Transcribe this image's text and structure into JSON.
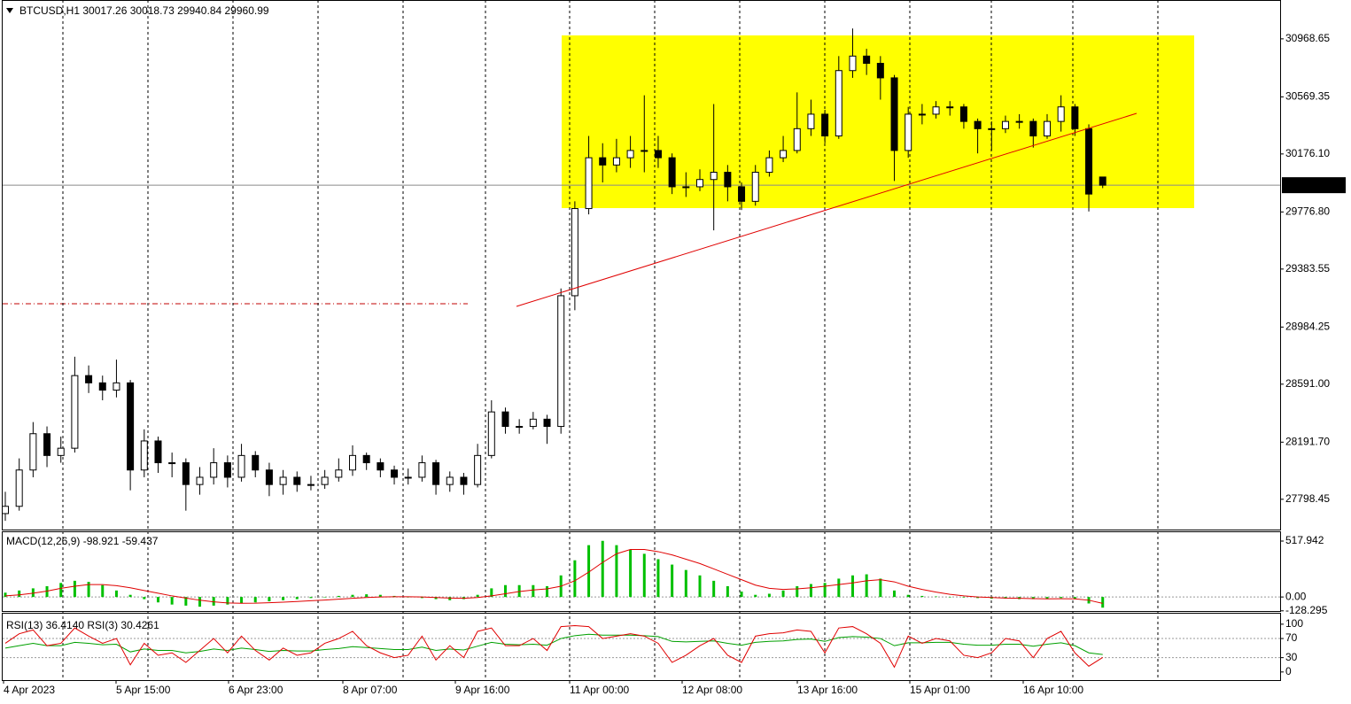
{
  "chart_data": [
    {
      "type": "candlestick",
      "title": "BTCUSD,H1  30017.26 30018.73 29940.84 29960.99",
      "open": [
        27700,
        27750,
        28000,
        28250,
        28100,
        28150,
        28650,
        28600,
        28550,
        28600,
        28000,
        28200,
        28050,
        28050,
        27900,
        27950,
        28050,
        27950,
        28100,
        28000,
        27900,
        27950,
        27900,
        27900,
        27950,
        28000,
        28100,
        28050,
        28000,
        27950,
        27950,
        28050,
        27900,
        27950,
        27900,
        28100,
        28400,
        28300,
        28300,
        28350,
        28300,
        29200,
        29800,
        30150,
        30100,
        30150,
        30200,
        30200,
        30150,
        29950,
        29950,
        30000,
        30050,
        29950,
        29850,
        30050,
        30150,
        30200,
        30350,
        30450,
        30300,
        30750,
        30850,
        30800,
        30700,
        30200,
        30450,
        30450,
        30500,
        30500,
        30400,
        30350,
        30350,
        30400,
        30400,
        30300,
        30400,
        30500,
        30350,
        30017.26
      ],
      "high": [
        27850,
        28080,
        28330,
        28300,
        28230,
        28780,
        28720,
        28650,
        28760,
        28620,
        28280,
        28230,
        28120,
        28080,
        28020,
        28150,
        28100,
        28180,
        28130,
        28050,
        28000,
        27990,
        27960,
        28000,
        28080,
        28170,
        28120,
        28080,
        28030,
        28010,
        28100,
        28070,
        27990,
        27980,
        28180,
        28480,
        28430,
        28350,
        28400,
        28380,
        29250,
        29850,
        30300,
        30250,
        30280,
        30300,
        30580,
        30300,
        30180,
        30050,
        30070,
        30520,
        30100,
        29980,
        30100,
        30200,
        30300,
        30600,
        30550,
        30480,
        30850,
        31040,
        30900,
        30850,
        30720,
        30500,
        30520,
        30540,
        30540,
        30520,
        30420,
        30400,
        30440,
        30450,
        30420,
        30450,
        30580,
        30520,
        30380,
        30018.73
      ],
      "low": [
        27650,
        27720,
        27950,
        28020,
        28050,
        28120,
        28530,
        28480,
        28500,
        27860,
        27950,
        27980,
        27950,
        27720,
        27830,
        27900,
        27880,
        27920,
        27950,
        27820,
        27830,
        27850,
        27860,
        27870,
        27920,
        27960,
        28000,
        27950,
        27900,
        27900,
        27920,
        27830,
        27850,
        27830,
        27880,
        28080,
        28250,
        28250,
        28280,
        28180,
        28250,
        29100,
        29760,
        29980,
        30050,
        30080,
        30050,
        30080,
        29900,
        29880,
        29920,
        29650,
        29850,
        29790,
        29820,
        30020,
        30120,
        30180,
        30300,
        30250,
        30280,
        30700,
        30720,
        30550,
        29990,
        30150,
        30380,
        30420,
        30440,
        30350,
        30180,
        30200,
        30320,
        30350,
        30220,
        30280,
        30330,
        30300,
        29780,
        29940.84
      ],
      "close": [
        27750,
        28000,
        28250,
        28100,
        28150,
        28650,
        28600,
        28550,
        28600,
        28000,
        28200,
        28050,
        28050,
        27900,
        27950,
        28050,
        27950,
        28100,
        28000,
        27900,
        27950,
        27900,
        27900,
        27950,
        28000,
        28100,
        28050,
        28000,
        27950,
        27950,
        28050,
        27900,
        27950,
        27900,
        28100,
        28400,
        28300,
        28300,
        28350,
        28300,
        29200,
        29800,
        30150,
        30100,
        30150,
        30200,
        30200,
        30150,
        29950,
        29950,
        30000,
        30050,
        29950,
        29850,
        30050,
        30150,
        30200,
        30350,
        30450,
        30300,
        30750,
        30850,
        30800,
        30700,
        30200,
        30450,
        30450,
        30500,
        30500,
        30400,
        30350,
        30350,
        30400,
        30400,
        30300,
        30400,
        30500,
        30350,
        29900,
        29960.99
      ],
      "ylim": [
        27590,
        31230
      ],
      "yticks": [
        30968.65,
        30569.35,
        {
          "value": 30176.1,
          "label": "30176.10"
        },
        {
          "value": 29776.8,
          "label": "29776.80"
        },
        29383.55,
        28984.25,
        {
          "value": 28591,
          "label": "28591.00"
        },
        {
          "value": 28191.7,
          "label": "28191.70"
        },
        27798.45
      ],
      "current_price": 29960.99,
      "x_labels": [
        "4 Apr 2023",
        "5 Apr 15:00",
        "6 Apr 23:00",
        "8 Apr 07:00",
        "9 Apr 16:00",
        "11 Apr 00:00",
        "12 Apr 08:00",
        "13 Apr 16:00",
        "15 Apr 01:00",
        "16 Apr 10:00"
      ]
    },
    {
      "type": "macd",
      "title": "MACD(12,26,9) -98.921 -59.437",
      "histogram": [
        40,
        60,
        80,
        100,
        130,
        150,
        140,
        110,
        60,
        20,
        -20,
        -50,
        -70,
        -80,
        -90,
        -80,
        -70,
        -60,
        -50,
        -40,
        -30,
        -20,
        -10,
        0,
        10,
        20,
        25,
        20,
        10,
        0,
        -10,
        -20,
        -30,
        -20,
        20,
        80,
        110,
        110,
        110,
        100,
        200,
        340,
        480,
        520,
        480,
        440,
        400,
        350,
        300,
        250,
        200,
        150,
        100,
        50,
        20,
        30,
        60,
        100,
        120,
        130,
        170,
        200,
        210,
        170,
        60,
        20,
        10,
        5,
        0,
        -5,
        -10,
        -15,
        -15,
        -20,
        -20,
        -20,
        -10,
        -20,
        -60,
        -98.921
      ],
      "signal": [
        10,
        20,
        35,
        55,
        80,
        100,
        115,
        115,
        105,
        85,
        60,
        35,
        10,
        -10,
        -30,
        -45,
        -55,
        -58,
        -57,
        -53,
        -48,
        -42,
        -35,
        -28,
        -20,
        -12,
        -5,
        0,
        2,
        2,
        0,
        -5,
        -10,
        -12,
        -5,
        10,
        30,
        50,
        65,
        75,
        100,
        150,
        230,
        320,
        400,
        440,
        440,
        420,
        390,
        350,
        310,
        260,
        210,
        160,
        110,
        80,
        70,
        75,
        85,
        100,
        115,
        130,
        150,
        160,
        140,
        100,
        70,
        45,
        25,
        10,
        0,
        -5,
        -10,
        -12,
        -15,
        -17,
        -16,
        -17,
        -30,
        -59.437
      ],
      "histogram_color": "#00c000",
      "signal_color": "#e00000",
      "ylim": [
        -130,
        600
      ],
      "yticks": [
        517.942,
        {
          "value": 0,
          "label": "0.00"
        },
        -128.295
      ]
    },
    {
      "type": "rsi",
      "title": "RSI(13) 36.4140  RSI(3) 30.4261",
      "series": [
        {
          "color": "#00a000",
          "values": [
            50,
            55,
            60,
            55,
            55,
            62,
            60,
            57,
            58,
            42,
            48,
            45,
            45,
            40,
            43,
            48,
            45,
            50,
            47,
            43,
            45,
            44,
            44,
            47,
            49,
            53,
            51,
            49,
            47,
            47,
            52,
            45,
            48,
            46,
            54,
            62,
            58,
            57,
            58,
            56,
            70,
            76,
            79,
            77,
            77,
            77,
            76,
            74,
            64,
            63,
            64,
            65,
            60,
            56,
            62,
            64,
            65,
            68,
            69,
            64,
            72,
            74,
            73,
            70,
            55,
            61,
            61,
            62,
            62,
            58,
            56,
            56,
            58,
            58,
            54,
            58,
            61,
            55,
            40,
            36.414
          ]
        },
        {
          "color": "#e00000",
          "values": [
            60,
            80,
            88,
            55,
            60,
            92,
            75,
            60,
            70,
            15,
            60,
            35,
            40,
            20,
            45,
            70,
            40,
            75,
            45,
            25,
            50,
            35,
            40,
            60,
            70,
            85,
            55,
            40,
            30,
            35,
            75,
            25,
            55,
            30,
            85,
            92,
            55,
            55,
            70,
            45,
            95,
            97,
            95,
            70,
            75,
            80,
            75,
            60,
            20,
            35,
            55,
            70,
            35,
            20,
            75,
            80,
            82,
            88,
            85,
            40,
            92,
            95,
            80,
            60,
            10,
            75,
            60,
            70,
            65,
            35,
            30,
            40,
            70,
            65,
            30,
            70,
            85,
            40,
            12,
            30.4261
          ]
        }
      ],
      "ylim": [
        -17,
        122
      ],
      "yticks": [
        100,
        70,
        30,
        0
      ]
    }
  ]
}
